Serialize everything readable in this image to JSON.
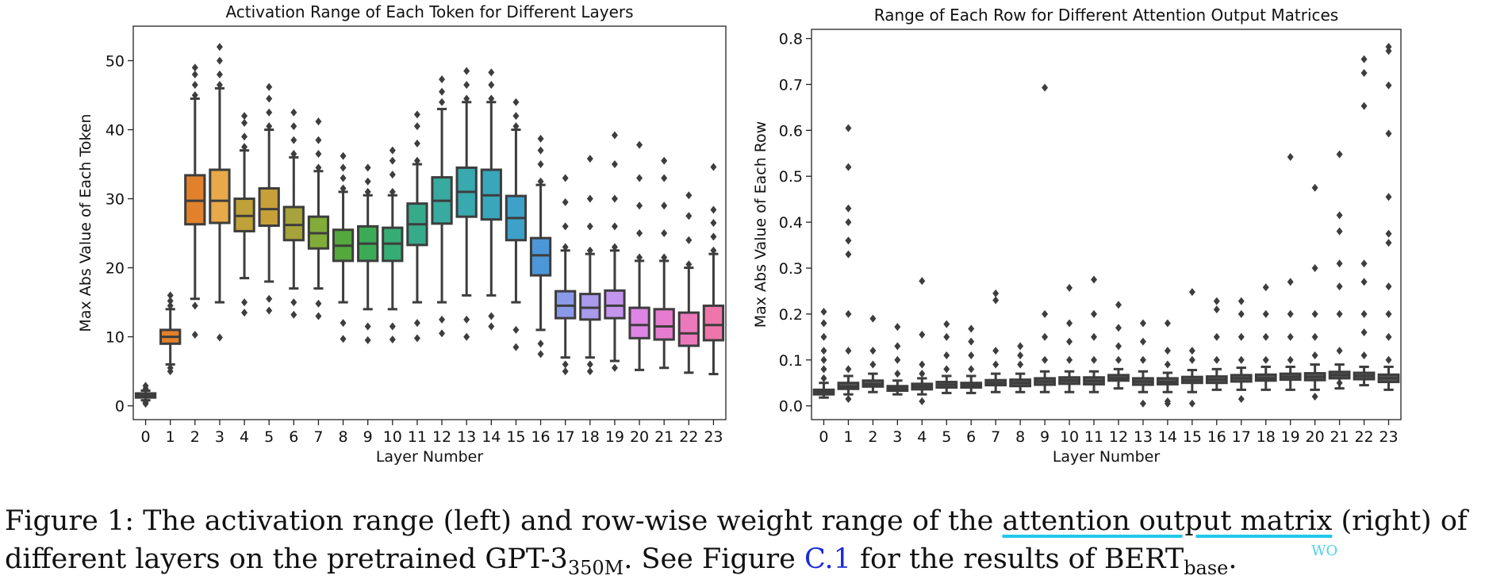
{
  "chart_data": [
    {
      "type": "box",
      "title": "Activation Range of Each Token for Different Layers",
      "xlabel": "Layer Number",
      "ylabel": "Max Abs Value of Each Token",
      "ylim": [
        -2,
        55
      ],
      "yticks": [
        "0",
        "10",
        "20",
        "30",
        "40",
        "50"
      ],
      "ytick_values": [
        0,
        10,
        20,
        30,
        40,
        50
      ],
      "categories": [
        "0",
        "1",
        "2",
        "3",
        "4",
        "5",
        "6",
        "7",
        "8",
        "9",
        "10",
        "11",
        "12",
        "13",
        "14",
        "15",
        "16",
        "17",
        "18",
        "19",
        "20",
        "21",
        "22",
        "23"
      ],
      "series": [
        {
          "q1": 1.2,
          "median": 1.5,
          "q3": 1.8,
          "whisker_low": 0.8,
          "whisker_high": 2.2,
          "outliers": [
            0.3,
            0.5,
            2.5,
            2.9
          ]
        },
        {
          "q1": 9.0,
          "median": 10.0,
          "q3": 11.0,
          "whisker_low": 6.0,
          "whisker_high": 14.0,
          "outliers": [
            5.0,
            5.5,
            14.5,
            15.2,
            16.0
          ]
        },
        {
          "q1": 26.3,
          "median": 29.7,
          "q3": 33.4,
          "whisker_low": 15.5,
          "whisker_high": 44.5,
          "outliers": [
            10.3,
            14.5,
            45.0,
            46.5,
            48.0,
            49.0
          ]
        },
        {
          "q1": 26.5,
          "median": 29.7,
          "q3": 34.2,
          "whisker_low": 15.0,
          "whisker_high": 46.0,
          "outliers": [
            9.9,
            46.5,
            48.0,
            50.0,
            52.0
          ]
        },
        {
          "q1": 25.3,
          "median": 27.5,
          "q3": 30.0,
          "whisker_low": 18.5,
          "whisker_high": 37.0,
          "outliers": [
            13.5,
            15.0,
            37.5,
            39.0,
            41.0,
            42.0
          ]
        },
        {
          "q1": 26.1,
          "median": 28.5,
          "q3": 31.5,
          "whisker_low": 18.0,
          "whisker_high": 40.0,
          "outliers": [
            13.8,
            15.5,
            40.5,
            42.5,
            44.5,
            46.2
          ]
        },
        {
          "q1": 24.0,
          "median": 26.2,
          "q3": 28.8,
          "whisker_low": 17.0,
          "whisker_high": 36.0,
          "outliers": [
            13.2,
            15.0,
            36.5,
            38.5,
            40.5,
            42.5
          ]
        },
        {
          "q1": 22.8,
          "median": 25.0,
          "q3": 27.4,
          "whisker_low": 17.0,
          "whisker_high": 34.0,
          "outliers": [
            13.0,
            14.8,
            34.5,
            36.5,
            38.5,
            41.2
          ]
        },
        {
          "q1": 21.0,
          "median": 23.2,
          "q3": 25.5,
          "whisker_low": 15.0,
          "whisker_high": 31.0,
          "outliers": [
            9.7,
            12.0,
            31.5,
            33.0,
            34.5,
            36.2
          ]
        },
        {
          "q1": 21.0,
          "median": 23.5,
          "q3": 26.0,
          "whisker_low": 14.0,
          "whisker_high": 30.5,
          "outliers": [
            9.5,
            11.5,
            31.0,
            32.5,
            34.5
          ]
        },
        {
          "q1": 21.0,
          "median": 23.5,
          "q3": 25.8,
          "whisker_low": 14.0,
          "whisker_high": 30.5,
          "outliers": [
            9.6,
            11.5,
            31.0,
            33.5,
            35.5,
            37.0
          ]
        },
        {
          "q1": 23.3,
          "median": 26.3,
          "q3": 29.3,
          "whisker_low": 15.0,
          "whisker_high": 35.0,
          "outliers": [
            9.8,
            12.0,
            35.5,
            38.0,
            40.5,
            42.2
          ]
        },
        {
          "q1": 26.4,
          "median": 29.7,
          "q3": 33.1,
          "whisker_low": 15.0,
          "whisker_high": 43.0,
          "outliers": [
            10.5,
            12.5,
            44.0,
            45.5,
            47.3
          ]
        },
        {
          "q1": 27.4,
          "median": 31.0,
          "q3": 34.5,
          "whisker_low": 16.0,
          "whisker_high": 44.0,
          "outliers": [
            10.0,
            12.5,
            44.5,
            46.5,
            48.5
          ]
        },
        {
          "q1": 27.0,
          "median": 30.5,
          "q3": 34.2,
          "whisker_low": 16.0,
          "whisker_high": 44.0,
          "outliers": [
            11.5,
            13.0,
            44.5,
            46.5,
            48.3
          ]
        },
        {
          "q1": 24.0,
          "median": 27.2,
          "q3": 30.4,
          "whisker_low": 15.0,
          "whisker_high": 40.0,
          "outliers": [
            8.5,
            11.0,
            40.5,
            42.0,
            44.0
          ]
        },
        {
          "q1": 18.9,
          "median": 21.8,
          "q3": 24.3,
          "whisker_low": 11.0,
          "whisker_high": 32.0,
          "outliers": [
            7.5,
            9.0,
            32.5,
            35.0,
            37.0,
            38.7
          ]
        },
        {
          "q1": 12.7,
          "median": 14.5,
          "q3": 16.6,
          "whisker_low": 7.0,
          "whisker_high": 22.5,
          "outliers": [
            5.0,
            6.0,
            23.0,
            26.0,
            29.5,
            33.0
          ]
        },
        {
          "q1": 12.5,
          "median": 14.2,
          "q3": 16.2,
          "whisker_low": 7.0,
          "whisker_high": 22.0,
          "outliers": [
            5.0,
            6.0,
            22.5,
            26.0,
            30.0,
            35.8
          ]
        },
        {
          "q1": 12.7,
          "median": 14.5,
          "q3": 16.7,
          "whisker_low": 6.5,
          "whisker_high": 22.5,
          "outliers": [
            5.5,
            23.0,
            26.0,
            30.0,
            35.0,
            39.2
          ]
        },
        {
          "q1": 9.8,
          "median": 11.7,
          "q3": 14.2,
          "whisker_low": 5.2,
          "whisker_high": 21.0,
          "outliers": [
            21.5,
            25.0,
            29.0,
            33.0,
            37.8
          ]
        },
        {
          "q1": 9.6,
          "median": 11.5,
          "q3": 14.0,
          "whisker_low": 5.5,
          "whisker_high": 21.0,
          "outliers": [
            21.5,
            25.0,
            29.0,
            33.0,
            35.5
          ]
        },
        {
          "q1": 8.7,
          "median": 10.5,
          "q3": 13.5,
          "whisker_low": 4.8,
          "whisker_high": 20.0,
          "outliers": [
            20.5,
            24.0,
            27.5,
            30.5
          ]
        },
        {
          "q1": 9.5,
          "median": 11.7,
          "q3": 14.5,
          "whisker_low": 4.6,
          "whisker_high": 22.0,
          "outliers": [
            22.5,
            24.5,
            26.5,
            28.4,
            34.6
          ]
        }
      ],
      "colors": [
        "#3274a1",
        "#e1812c",
        "#e1812c",
        "#e8a94a",
        "#c0a038",
        "#c8a03a",
        "#a5a33a",
        "#82ac3a",
        "#55a83e",
        "#3cab55",
        "#36ad74",
        "#38aa8c",
        "#38aaa0",
        "#38a9ae",
        "#3aa6bb",
        "#3ea1c8",
        "#4c97d8",
        "#8b9ae8",
        "#a99aec",
        "#c495ee",
        "#de84e5",
        "#e67ccf",
        "#ec78bc",
        "#ef76ab"
      ]
    },
    {
      "type": "box",
      "title": "Range of Each Row for Different Attention Output Matrices",
      "xlabel": "Layer Number",
      "ylabel": "Max Abs Value of Each Row",
      "ylim": [
        -0.03,
        0.82
      ],
      "yticks": [
        "0.0",
        "0.1",
        "0.2",
        "0.3",
        "0.4",
        "0.5",
        "0.6",
        "0.7",
        "0.8"
      ],
      "ytick_values": [
        0.0,
        0.1,
        0.2,
        0.3,
        0.4,
        0.5,
        0.6,
        0.7,
        0.8
      ],
      "categories": [
        "0",
        "1",
        "2",
        "3",
        "4",
        "5",
        "6",
        "7",
        "8",
        "9",
        "10",
        "11",
        "12",
        "13",
        "14",
        "15",
        "16",
        "17",
        "18",
        "19",
        "20",
        "21",
        "22",
        "23"
      ],
      "series": [
        {
          "q1": 0.025,
          "median": 0.03,
          "q3": 0.035,
          "whisker_low": 0.018,
          "whisker_high": 0.05,
          "outliers": [
            0.06,
            0.08,
            0.1,
            0.12,
            0.15,
            0.18,
            0.205
          ]
        },
        {
          "q1": 0.037,
          "median": 0.042,
          "q3": 0.05,
          "whisker_low": 0.025,
          "whisker_high": 0.065,
          "outliers": [
            0.015,
            0.08,
            0.12,
            0.2,
            0.33,
            0.36,
            0.4,
            0.43,
            0.52,
            0.605
          ]
        },
        {
          "q1": 0.042,
          "median": 0.047,
          "q3": 0.055,
          "whisker_low": 0.03,
          "whisker_high": 0.07,
          "outliers": [
            0.09,
            0.12,
            0.19
          ]
        },
        {
          "q1": 0.033,
          "median": 0.038,
          "q3": 0.043,
          "whisker_low": 0.025,
          "whisker_high": 0.055,
          "outliers": [
            0.07,
            0.1,
            0.13,
            0.172
          ]
        },
        {
          "q1": 0.036,
          "median": 0.042,
          "q3": 0.048,
          "whisker_low": 0.025,
          "whisker_high": 0.06,
          "outliers": [
            0.01,
            0.07,
            0.09,
            0.155,
            0.272
          ]
        },
        {
          "q1": 0.04,
          "median": 0.046,
          "q3": 0.052,
          "whisker_low": 0.028,
          "whisker_high": 0.065,
          "outliers": [
            0.08,
            0.11,
            0.15,
            0.178
          ]
        },
        {
          "q1": 0.04,
          "median": 0.045,
          "q3": 0.05,
          "whisker_low": 0.028,
          "whisker_high": 0.065,
          "outliers": [
            0.08,
            0.11,
            0.14,
            0.168
          ]
        },
        {
          "q1": 0.045,
          "median": 0.05,
          "q3": 0.056,
          "whisker_low": 0.03,
          "whisker_high": 0.07,
          "outliers": [
            0.09,
            0.12,
            0.23,
            0.245
          ]
        },
        {
          "q1": 0.043,
          "median": 0.05,
          "q3": 0.057,
          "whisker_low": 0.03,
          "whisker_high": 0.07,
          "outliers": [
            0.09,
            0.11,
            0.13
          ]
        },
        {
          "q1": 0.046,
          "median": 0.053,
          "q3": 0.06,
          "whisker_low": 0.03,
          "whisker_high": 0.075,
          "outliers": [
            0.1,
            0.15,
            0.2,
            0.693
          ]
        },
        {
          "q1": 0.048,
          "median": 0.055,
          "q3": 0.062,
          "whisker_low": 0.03,
          "whisker_high": 0.075,
          "outliers": [
            0.1,
            0.14,
            0.18,
            0.257
          ]
        },
        {
          "q1": 0.047,
          "median": 0.054,
          "q3": 0.062,
          "whisker_low": 0.03,
          "whisker_high": 0.075,
          "outliers": [
            0.1,
            0.15,
            0.2,
            0.275
          ]
        },
        {
          "q1": 0.055,
          "median": 0.06,
          "q3": 0.067,
          "whisker_low": 0.038,
          "whisker_high": 0.08,
          "outliers": [
            0.1,
            0.13,
            0.17,
            0.22
          ]
        },
        {
          "q1": 0.046,
          "median": 0.053,
          "q3": 0.06,
          "whisker_low": 0.03,
          "whisker_high": 0.075,
          "outliers": [
            0.005,
            0.1,
            0.14,
            0.18
          ]
        },
        {
          "q1": 0.047,
          "median": 0.052,
          "q3": 0.06,
          "whisker_low": 0.03,
          "whisker_high": 0.072,
          "outliers": [
            0.005,
            0.01,
            0.09,
            0.12,
            0.18
          ]
        },
        {
          "q1": 0.05,
          "median": 0.056,
          "q3": 0.063,
          "whisker_low": 0.03,
          "whisker_high": 0.078,
          "outliers": [
            0.005,
            0.1,
            0.12,
            0.248
          ]
        },
        {
          "q1": 0.05,
          "median": 0.057,
          "q3": 0.064,
          "whisker_low": 0.035,
          "whisker_high": 0.08,
          "outliers": [
            0.1,
            0.15,
            0.21,
            0.228
          ]
        },
        {
          "q1": 0.053,
          "median": 0.06,
          "q3": 0.067,
          "whisker_low": 0.035,
          "whisker_high": 0.083,
          "outliers": [
            0.015,
            0.1,
            0.15,
            0.2,
            0.228
          ]
        },
        {
          "q1": 0.055,
          "median": 0.06,
          "q3": 0.068,
          "whisker_low": 0.035,
          "whisker_high": 0.085,
          "outliers": [
            0.1,
            0.15,
            0.2,
            0.258
          ]
        },
        {
          "q1": 0.057,
          "median": 0.063,
          "q3": 0.07,
          "whisker_low": 0.035,
          "whisker_high": 0.085,
          "outliers": [
            0.1,
            0.15,
            0.2,
            0.27,
            0.542
          ]
        },
        {
          "q1": 0.056,
          "median": 0.063,
          "q3": 0.071,
          "whisker_low": 0.035,
          "whisker_high": 0.09,
          "outliers": [
            0.02,
            0.11,
            0.15,
            0.2,
            0.3,
            0.475
          ]
        },
        {
          "q1": 0.06,
          "median": 0.067,
          "q3": 0.074,
          "whisker_low": 0.038,
          "whisker_high": 0.09,
          "outliers": [
            0.05,
            0.12,
            0.2,
            0.26,
            0.31,
            0.38,
            0.415,
            0.548
          ]
        },
        {
          "q1": 0.058,
          "median": 0.065,
          "q3": 0.072,
          "whisker_low": 0.045,
          "whisker_high": 0.085,
          "outliers": [
            0.11,
            0.16,
            0.2,
            0.27,
            0.31,
            0.653,
            0.725,
            0.755
          ]
        },
        {
          "q1": 0.052,
          "median": 0.06,
          "q3": 0.068,
          "whisker_low": 0.035,
          "whisker_high": 0.085,
          "outliers": [
            0.1,
            0.15,
            0.2,
            0.26,
            0.355,
            0.375,
            0.455,
            0.593,
            0.698,
            0.773,
            0.782
          ]
        }
      ],
      "colors": [
        "#555555"
      ]
    }
  ],
  "caption": {
    "prefix": "Figure 1: The activation range (left) and row-wise weight range of the ",
    "term": "attention output matrix",
    "mid": " (right) of",
    "line2_start": "different layers on the pretrained GPT-3",
    "gpt_sub": "350M",
    "line2_mid": ". See Figure ",
    "link": "C.1",
    "line2_end": " for the results of BERT",
    "bert_sub": "base",
    "end": ".",
    "term_note": "WO"
  }
}
